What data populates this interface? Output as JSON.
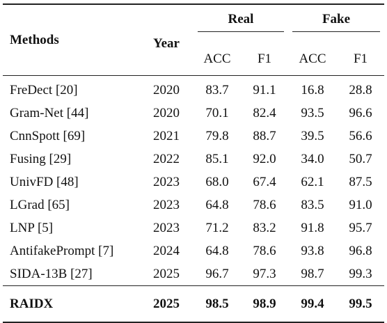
{
  "header": {
    "methods": "Methods",
    "year": "Year",
    "real": "Real",
    "fake": "Fake",
    "acc": "ACC",
    "f1": "F1"
  },
  "rows": [
    {
      "method": "FreDect [20]",
      "year": "2020",
      "real_acc": "83.7",
      "real_f1": "91.1",
      "fake_acc": "16.8",
      "fake_f1": "28.8"
    },
    {
      "method": "Gram-Net [44]",
      "year": "2020",
      "real_acc": "70.1",
      "real_f1": "82.4",
      "fake_acc": "93.5",
      "fake_f1": "96.6"
    },
    {
      "method": "CnnSpott [69]",
      "year": "2021",
      "real_acc": "79.8",
      "real_f1": "88.7",
      "fake_acc": "39.5",
      "fake_f1": "56.6"
    },
    {
      "method": "Fusing [29]",
      "year": "2022",
      "real_acc": "85.1",
      "real_f1": "92.0",
      "fake_acc": "34.0",
      "fake_f1": "50.7"
    },
    {
      "method": "UnivFD [48]",
      "year": "2023",
      "real_acc": "68.0",
      "real_f1": "67.4",
      "fake_acc": "62.1",
      "fake_f1": "87.5"
    },
    {
      "method": "LGrad [65]",
      "year": "2023",
      "real_acc": "64.8",
      "real_f1": "78.6",
      "fake_acc": "83.5",
      "fake_f1": "91.0"
    },
    {
      "method": "LNP [5]",
      "year": "2023",
      "real_acc": "71.2",
      "real_f1": "83.2",
      "fake_acc": "91.8",
      "fake_f1": "95.7"
    },
    {
      "method": "AntifakePrompt [7]",
      "year": "2024",
      "real_acc": "64.8",
      "real_f1": "78.6",
      "fake_acc": "93.8",
      "fake_f1": "96.8"
    },
    {
      "method": "SIDA-13B [27]",
      "year": "2025",
      "real_acc": "96.7",
      "real_f1": "97.3",
      "fake_acc": "98.7",
      "fake_f1": "99.3"
    }
  ],
  "final": {
    "method": "RAIDX",
    "year": "2025",
    "real_acc": "98.5",
    "real_f1": "98.9",
    "fake_acc": "99.4",
    "fake_f1": "99.5"
  }
}
